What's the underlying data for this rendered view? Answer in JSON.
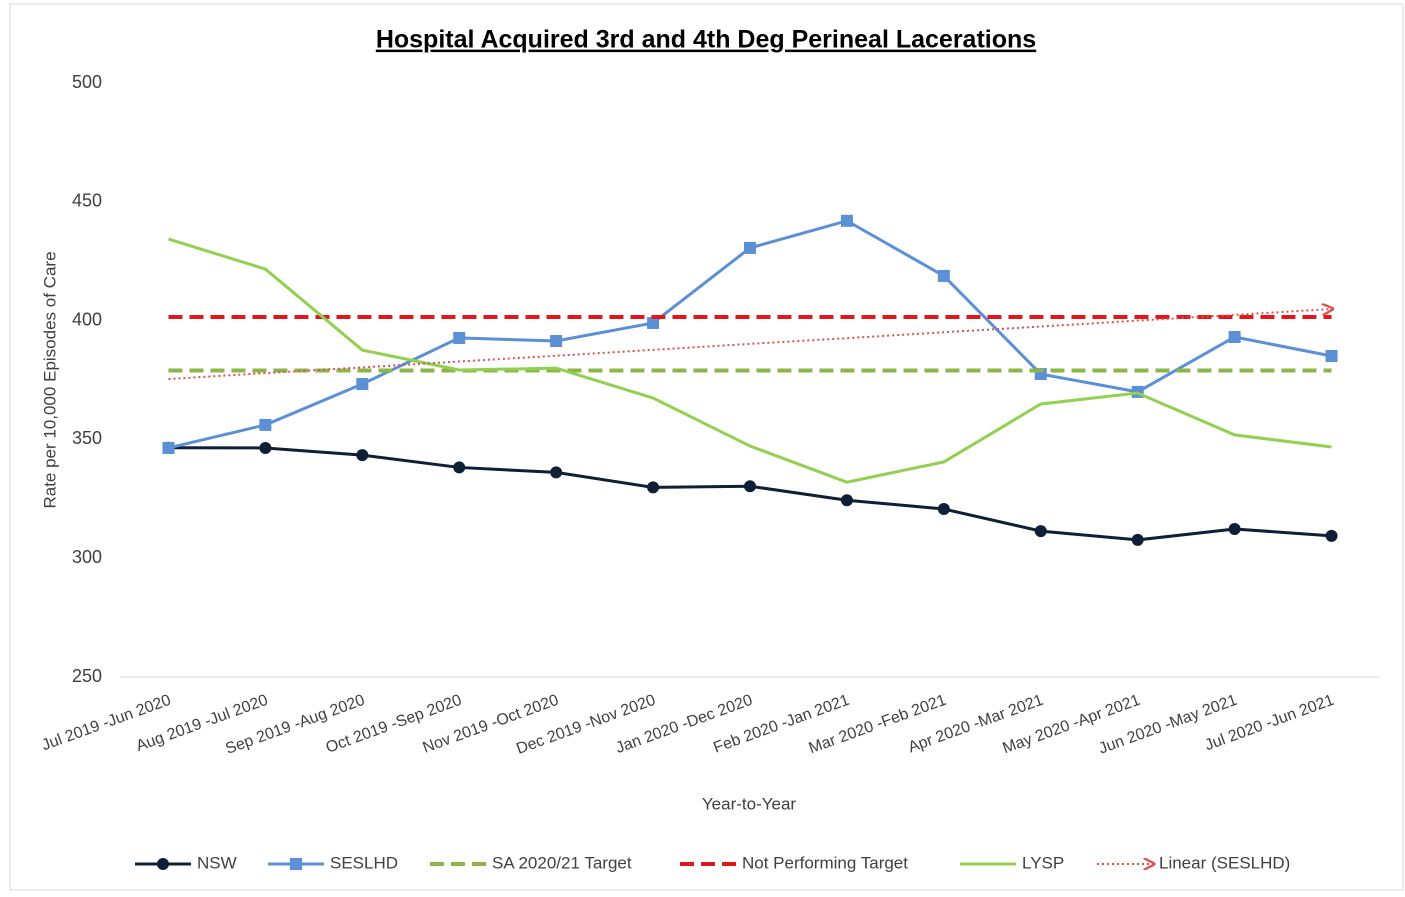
{
  "chart_data": {
    "type": "line",
    "title": "Hospital Acquired 3rd and 4th Deg Perineal Lacerations",
    "y_label": "Rate per 10,000 Episodes of Care",
    "x_label": "Year-to-Year",
    "categories": [
      "Jul 2019 -Jun 2020",
      "Aug 2019 -Jul 2020",
      "Sep 2019 -Aug 2020",
      "Oct 2019 -Sep 2020",
      "Nov 2019 -Oct 2020",
      "Dec 2019 -Nov 2020",
      "Jan 2020 -Dec 2020",
      "Feb 2020 -Jan 2021",
      "Mar 2020 -Feb 2021",
      "Apr 2020 -Mar 2021",
      "May 2020 -Apr 2021",
      "Jun 2020 -May 2021",
      "Jul 2020 -Jun 2021"
    ],
    "ylim": [
      250,
      500
    ],
    "yticks": [
      250,
      300,
      350,
      400,
      450,
      500
    ],
    "legend": "bottom",
    "series": [
      {
        "name": "NSW",
        "color": "#0f1f38",
        "marker": "circle",
        "dash": "solid",
        "values": [
          346.5,
          346.4,
          343.4,
          338.2,
          336.1,
          329.8,
          330.3,
          324.4,
          320.7,
          311.4,
          307.7,
          312.3,
          309.4
        ]
      },
      {
        "name": "SESLHD",
        "color": "#5b8fd6",
        "marker": "square",
        "dash": "solid",
        "values": [
          346.4,
          356.1,
          373.3,
          392.7,
          391.4,
          399.0,
          430.6,
          442.0,
          418.8,
          377.5,
          370.0,
          393.1,
          385.1
        ]
      },
      {
        "name": "SA 2020/21 Target",
        "color": "#8db64a",
        "marker": "none",
        "dash": "dashed",
        "values": [
          379,
          379,
          379,
          379,
          379,
          379,
          379,
          379,
          379,
          379,
          379,
          379,
          379
        ]
      },
      {
        "name": "Not Performing Target",
        "color": "#e3161b",
        "marker": "none",
        "dash": "dashed",
        "values": [
          401.5,
          401.5,
          401.5,
          401.5,
          401.5,
          401.5,
          401.5,
          401.5,
          401.5,
          401.5,
          401.5,
          401.5,
          401.5
        ]
      },
      {
        "name": "LYSP",
        "color": "#92d050",
        "marker": "none",
        "dash": "solid",
        "values": [
          434.3,
          421.7,
          387.6,
          379.2,
          380.0,
          367.4,
          347.2,
          332.0,
          340.5,
          364.9,
          369.5,
          351.9,
          346.8
        ]
      },
      {
        "name": "Linear (SESLHD)",
        "color": "#d9534f",
        "marker": "arrow",
        "dash": "dotted",
        "values": [
          375.4,
          377.9,
          380.3,
          382.8,
          385.2,
          387.7,
          390.2,
          392.6,
          395.1,
          397.5,
          400.0,
          402.4,
          404.9
        ]
      }
    ]
  }
}
